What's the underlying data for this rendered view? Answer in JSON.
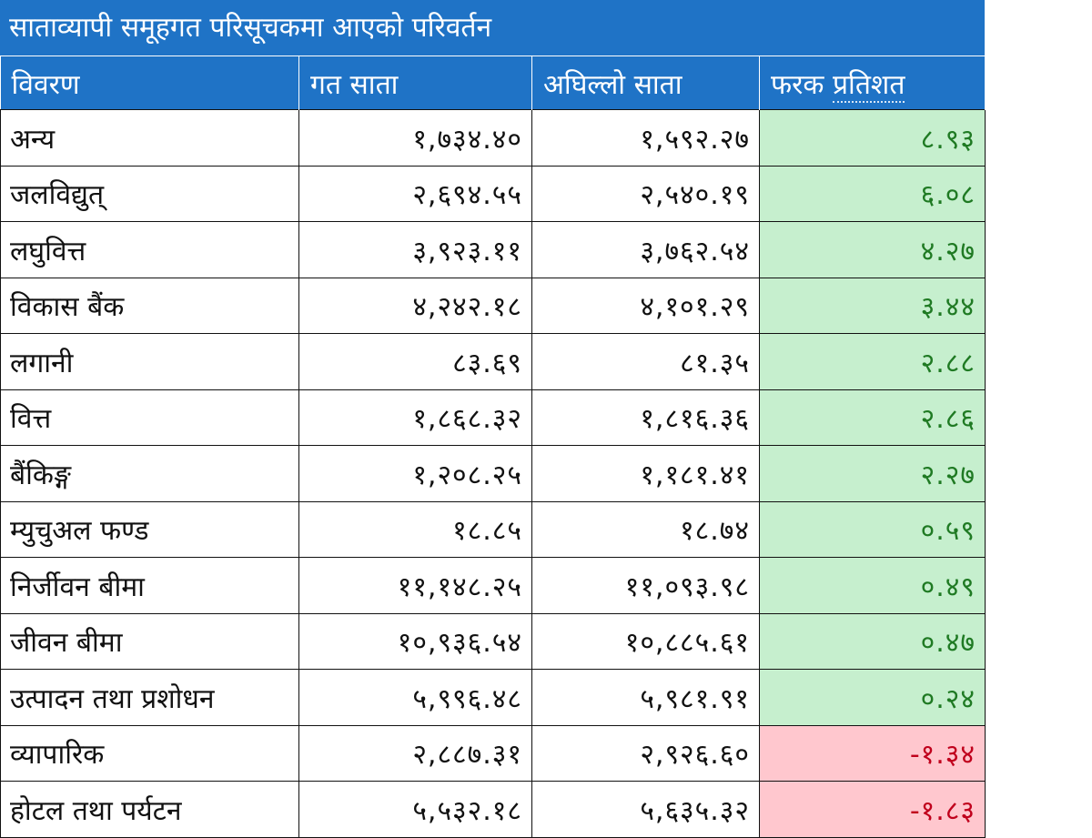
{
  "title": "साताव्यापी समूहगत परिसूचकमा आएको परिवर्तन",
  "headers": {
    "col1": "विवरण",
    "col2": "गत साता",
    "col3": "अघिल्लो साता",
    "col4a": "फरक ",
    "col4b": "प्रतिशत"
  },
  "rows": [
    {
      "name": "अन्य",
      "last": "१,७३४.४०",
      "prev": "१,५९२.२७",
      "change": "८.९३",
      "dir": "pos"
    },
    {
      "name": "जलविद्युत्",
      "last": "२,६९४.५५",
      "prev": "२,५४०.१९",
      "change": "६.०८",
      "dir": "pos"
    },
    {
      "name": "लघुवित्त",
      "last": "३,९२३.११",
      "prev": "३,७६२.५४",
      "change": "४.२७",
      "dir": "pos"
    },
    {
      "name": "विकास बैंक",
      "last": "४,२४२.१८",
      "prev": "४,१०१.२९",
      "change": "३.४४",
      "dir": "pos"
    },
    {
      "name": "लगानी",
      "last": "८३.६९",
      "prev": "८१.३५",
      "change": "२.८८",
      "dir": "pos"
    },
    {
      "name": "वित्त",
      "last": "१,८६८.३२",
      "prev": "१,८१६.३६",
      "change": "२.८६",
      "dir": "pos"
    },
    {
      "name": "बैंकिङ्ग",
      "last": "१,२०८.२५",
      "prev": "१,१८१.४१",
      "change": "२.२७",
      "dir": "pos"
    },
    {
      "name": "म्युचुअल फण्ड",
      "last": "१८.८५",
      "prev": "१८.७४",
      "change": "०.५९",
      "dir": "pos"
    },
    {
      "name": "निर्जीवन बीमा",
      "last": "११,१४८.२५",
      "prev": "११,०९३.९८",
      "change": "०.४९",
      "dir": "pos"
    },
    {
      "name": "जीवन बीमा",
      "last": "१०,९३६.५४",
      "prev": "१०,८८५.६१",
      "change": "०.४७",
      "dir": "pos"
    },
    {
      "name": "उत्पादन तथा प्रशोधन",
      "last": "५,९९६.४८",
      "prev": "५,९८१.९१",
      "change": "०.२४",
      "dir": "pos"
    },
    {
      "name": "व्यापारिक",
      "last": "२,८८७.३१",
      "prev": "२,९२६.६०",
      "change": "-१.३४",
      "dir": "neg"
    },
    {
      "name": "होटल तथा पर्यटन",
      "last": "५,५३२.१८",
      "prev": "५,६३५.३२",
      "change": "-१.८३",
      "dir": "neg"
    }
  ]
}
